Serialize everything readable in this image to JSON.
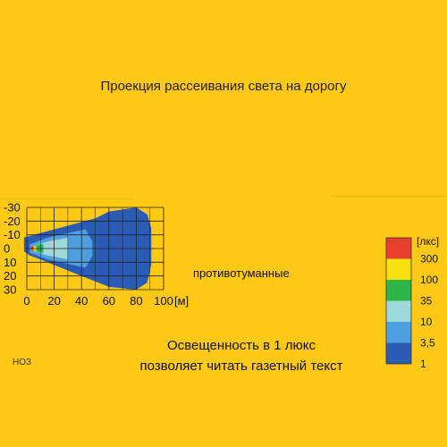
{
  "chart_data": {
    "type": "heatmap",
    "title": "Проекция рассеивания света на дорогу",
    "x_ticks": [
      "0",
      "20",
      "40",
      "60",
      "80",
      "100"
    ],
    "x_unit": "[м]",
    "y_ticks": [
      "-30",
      "-20",
      "-10",
      "0",
      "10",
      "20",
      "30"
    ],
    "xlim": [
      0,
      100
    ],
    "ylim": [
      -30,
      30
    ],
    "grid": true,
    "series_label": "противотуманные",
    "legend": {
      "unit": "[лкс]",
      "levels": [
        {
          "label": "300",
          "color": "#E8402E"
        },
        {
          "label": "100",
          "color": "#F5E20C"
        },
        {
          "label": "35",
          "color": "#2DB54A"
        },
        {
          "label": "10",
          "color": "#9ED9D9"
        },
        {
          "label": "3,5",
          "color": "#4E9FE0"
        },
        {
          "label": "1",
          "color": "#2A5BB5"
        }
      ]
    },
    "zones": [
      {
        "level": "1",
        "color": "#2A5BB5",
        "outline": [
          [
            -2,
            -8
          ],
          [
            5,
            -10
          ],
          [
            50,
            -22
          ],
          [
            60,
            -27
          ],
          [
            80,
            -30
          ],
          [
            88,
            -25
          ],
          [
            91,
            -15
          ],
          [
            91,
            12
          ],
          [
            88,
            25
          ],
          [
            80,
            30
          ],
          [
            60,
            28
          ],
          [
            40,
            20
          ],
          [
            10,
            8
          ],
          [
            2,
            5
          ],
          [
            -2,
            2
          ]
        ]
      },
      {
        "level": "3,5",
        "color": "#4E9FE0",
        "outline": [
          [
            2,
            -3
          ],
          [
            15,
            -8
          ],
          [
            43,
            -14
          ],
          [
            48,
            -5
          ],
          [
            48,
            5
          ],
          [
            43,
            14
          ],
          [
            15,
            8
          ],
          [
            2,
            3
          ]
        ]
      },
      {
        "level": "10",
        "color": "#9ED9D9",
        "outline": [
          [
            5,
            -2
          ],
          [
            15,
            -5
          ],
          [
            30,
            -8
          ],
          [
            30,
            8
          ],
          [
            15,
            5
          ],
          [
            5,
            2
          ]
        ]
      },
      {
        "level": "35",
        "color": "#2DB54A",
        "outline": [
          [
            5,
            -1.5
          ],
          [
            9,
            -3
          ],
          [
            12,
            -3
          ],
          [
            12,
            3
          ],
          [
            9,
            3
          ],
          [
            5,
            1.5
          ]
        ]
      },
      {
        "level": "100",
        "color": "#F5E20C",
        "outline": [
          [
            4,
            -1.5
          ],
          [
            7,
            -1.5
          ],
          [
            7,
            1.5
          ],
          [
            4,
            1.5
          ]
        ]
      },
      {
        "level": "300",
        "color": "#E8402E",
        "outline": [
          [
            3,
            -1.5
          ],
          [
            5,
            -1.5
          ],
          [
            5,
            1.5
          ],
          [
            3,
            1.5
          ]
        ]
      }
    ]
  },
  "footnote": {
    "line1": "Освещенность в 1 люкс",
    "line2": "позволяет читать газетный текст"
  },
  "code": "НОЗ"
}
